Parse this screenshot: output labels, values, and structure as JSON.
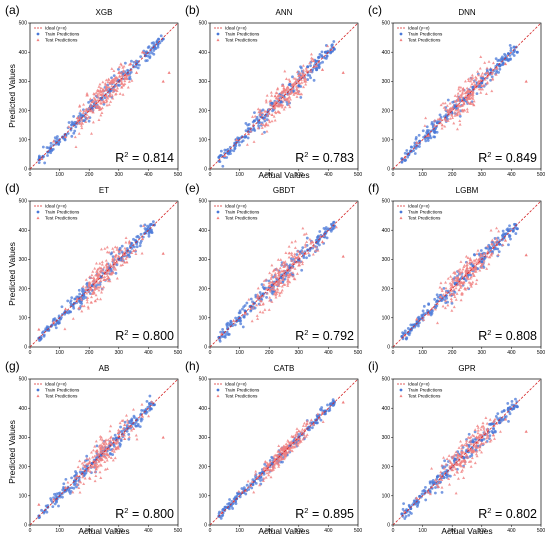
{
  "chart_data": [
    {
      "type": "scatter",
      "letter": "(a)",
      "title": "XGB",
      "r2": "0.814",
      "xlabel": "",
      "ylabel": "Predicted Values",
      "xlim": [
        0,
        500
      ],
      "ylim": [
        0,
        500
      ],
      "xticks": [
        0,
        100,
        200,
        300,
        400,
        500
      ],
      "yticks": [
        0,
        100,
        200,
        300,
        400,
        500
      ],
      "legend": [
        "Ideal (y=x)",
        "Train Predictions",
        "Test Predictions"
      ],
      "series": [
        {
          "name": "Ideal (y=x)",
          "x": [
            0,
            500
          ],
          "y": [
            0,
            500
          ]
        },
        {
          "name": "Train Predictions",
          "x": [
            30,
            60,
            90,
            120,
            150,
            180,
            210,
            240,
            270,
            300,
            330,
            360,
            390,
            420,
            450
          ],
          "y": [
            32,
            58,
            92,
            118,
            152,
            182,
            208,
            242,
            268,
            302,
            328,
            362,
            388,
            418,
            445
          ]
        },
        {
          "name": "Test Predictions",
          "x": [
            40,
            80,
            120,
            160,
            190,
            210,
            225,
            240,
            250,
            260,
            270,
            280,
            290,
            300,
            310,
            320,
            340,
            360,
            380,
            450,
            470
          ],
          "y": [
            35,
            95,
            110,
            175,
            200,
            230,
            210,
            265,
            230,
            280,
            250,
            300,
            270,
            330,
            280,
            310,
            360,
            330,
            400,
            300,
            330
          ]
        }
      ]
    },
    {
      "type": "scatter",
      "letter": "(b)",
      "title": "ANN",
      "r2": "0.783",
      "xlabel": "Actual Values",
      "ylabel": "",
      "xlim": [
        0,
        500
      ],
      "ylim": [
        0,
        500
      ],
      "xticks": [
        0,
        100,
        200,
        300,
        400,
        500
      ],
      "yticks": [
        0,
        100,
        200,
        300,
        400,
        500
      ],
      "legend": [
        "Ideal (y=x)",
        "Train Predictions",
        "Test Predictions"
      ],
      "series": [
        {
          "name": "Ideal (y=x)",
          "x": [
            0,
            500
          ],
          "y": [
            0,
            500
          ]
        },
        {
          "name": "Train Predictions",
          "x": [
            30,
            60,
            90,
            120,
            150,
            180,
            210,
            240,
            270,
            300,
            330,
            360,
            390,
            420
          ],
          "y": [
            40,
            55,
            100,
            110,
            165,
            175,
            225,
            230,
            290,
            285,
            350,
            340,
            400,
            410
          ]
        },
        {
          "name": "Test Predictions",
          "x": [
            50,
            90,
            130,
            170,
            200,
            220,
            240,
            250,
            260,
            270,
            290,
            300,
            320,
            350,
            380,
            450
          ],
          "y": [
            45,
            100,
            120,
            185,
            190,
            250,
            220,
            270,
            240,
            300,
            260,
            320,
            300,
            370,
            340,
            330
          ]
        }
      ]
    },
    {
      "type": "scatter",
      "letter": "(c)",
      "title": "DNN",
      "r2": "0.849",
      "xlabel": "",
      "ylabel": "",
      "xlim": [
        0,
        500
      ],
      "ylim": [
        0,
        500
      ],
      "xticks": [
        0,
        100,
        200,
        300,
        400,
        500
      ],
      "yticks": [
        0,
        100,
        200,
        300,
        400,
        500
      ],
      "legend": [
        "Ideal (y=x)",
        "Train Predictions",
        "Test Predictions"
      ],
      "series": [
        {
          "name": "Ideal (y=x)",
          "x": [
            0,
            500
          ],
          "y": [
            0,
            500
          ]
        },
        {
          "name": "Train Predictions",
          "x": [
            30,
            60,
            90,
            120,
            150,
            180,
            210,
            240,
            270,
            300,
            330,
            360,
            390,
            420
          ],
          "y": [
            35,
            62,
            95,
            118,
            158,
            178,
            215,
            238,
            280,
            295,
            340,
            355,
            395,
            400
          ]
        },
        {
          "name": "Test Predictions",
          "x": [
            40,
            80,
            120,
            160,
            200,
            220,
            240,
            250,
            270,
            290,
            300,
            320,
            350,
            380,
            450
          ],
          "y": [
            40,
            90,
            115,
            170,
            210,
            235,
            225,
            265,
            255,
            300,
            285,
            330,
            345,
            360,
            300
          ]
        }
      ]
    },
    {
      "type": "scatter",
      "letter": "(d)",
      "title": "ET",
      "r2": "0.800",
      "xlabel": "",
      "ylabel": "Predicted Values",
      "xlim": [
        0,
        500
      ],
      "ylim": [
        0,
        500
      ],
      "xticks": [
        0,
        100,
        200,
        300,
        400,
        500
      ],
      "yticks": [
        0,
        100,
        200,
        300,
        400,
        500
      ],
      "legend": [
        "Ideal (y=x)",
        "Train Predictions",
        "Test Predictions"
      ],
      "series": [
        {
          "name": "Ideal (y=x)",
          "x": [
            0,
            500
          ],
          "y": [
            0,
            500
          ]
        },
        {
          "name": "Train Predictions",
          "x": [
            30,
            60,
            90,
            120,
            150,
            180,
            210,
            240,
            270,
            300,
            330,
            360,
            390,
            420
          ],
          "y": [
            30,
            60,
            90,
            120,
            150,
            180,
            210,
            240,
            270,
            300,
            330,
            360,
            390,
            418
          ]
        },
        {
          "name": "Test Predictions",
          "x": [
            30,
            80,
            120,
            160,
            200,
            220,
            240,
            250,
            260,
            280,
            300,
            320,
            350,
            380,
            450
          ],
          "y": [
            60,
            85,
            130,
            165,
            215,
            200,
            270,
            230,
            285,
            255,
            310,
            290,
            330,
            370,
            320
          ]
        }
      ]
    },
    {
      "type": "scatter",
      "letter": "(e)",
      "title": "GBDT",
      "r2": "0.792",
      "xlabel": "",
      "ylabel": "",
      "xlim": [
        0,
        500
      ],
      "ylim": [
        0,
        500
      ],
      "xticks": [
        0,
        100,
        200,
        300,
        400,
        500
      ],
      "yticks": [
        0,
        100,
        200,
        300,
        400,
        500
      ],
      "legend": [
        "Ideal (y=x)",
        "Train Predictions",
        "Test Predictions"
      ],
      "series": [
        {
          "name": "Ideal (y=x)",
          "x": [
            0,
            500
          ],
          "y": [
            0,
            500
          ]
        },
        {
          "name": "Train Predictions",
          "x": [
            30,
            60,
            90,
            120,
            150,
            180,
            210,
            240,
            270,
            300,
            330,
            360,
            390,
            420
          ],
          "y": [
            33,
            62,
            88,
            122,
            150,
            182,
            212,
            238,
            272,
            298,
            332,
            358,
            392,
            415
          ]
        },
        {
          "name": "Test Predictions",
          "x": [
            40,
            80,
            120,
            160,
            200,
            220,
            240,
            250,
            270,
            290,
            300,
            320,
            350,
            380,
            450
          ],
          "y": [
            45,
            90,
            115,
            170,
            210,
            240,
            220,
            275,
            250,
            305,
            280,
            320,
            345,
            360,
            310
          ]
        }
      ]
    },
    {
      "type": "scatter",
      "letter": "(f)",
      "title": "LGBM",
      "r2": "0.808",
      "xlabel": "",
      "ylabel": "",
      "xlim": [
        0,
        500
      ],
      "ylim": [
        0,
        500
      ],
      "xticks": [
        0,
        100,
        200,
        300,
        400,
        500
      ],
      "yticks": [
        0,
        100,
        200,
        300,
        400,
        500
      ],
      "legend": [
        "Ideal (y=x)",
        "Train Predictions",
        "Test Predictions"
      ],
      "series": [
        {
          "name": "Ideal (y=x)",
          "x": [
            0,
            500
          ],
          "y": [
            0,
            500
          ]
        },
        {
          "name": "Train Predictions",
          "x": [
            30,
            60,
            90,
            120,
            150,
            180,
            210,
            240,
            270,
            300,
            330,
            360,
            390,
            420
          ],
          "y": [
            36,
            58,
            95,
            115,
            158,
            176,
            216,
            234,
            278,
            292,
            338,
            352,
            398,
            405
          ]
        },
        {
          "name": "Test Predictions",
          "x": [
            40,
            80,
            120,
            160,
            200,
            220,
            240,
            250,
            270,
            290,
            300,
            320,
            350,
            380,
            450
          ],
          "y": [
            40,
            95,
            112,
            172,
            205,
            238,
            222,
            270,
            252,
            300,
            282,
            325,
            350,
            365,
            315
          ]
        }
      ]
    },
    {
      "type": "scatter",
      "letter": "(g)",
      "title": "AB",
      "r2": "0.800",
      "xlabel": "Actual Values",
      "ylabel": "Predicted Values",
      "xlim": [
        0,
        500
      ],
      "ylim": [
        0,
        500
      ],
      "xticks": [
        0,
        100,
        200,
        300,
        400,
        500
      ],
      "yticks": [
        0,
        100,
        200,
        300,
        400,
        500
      ],
      "legend": [
        "Ideal (y=x)",
        "Train Predictions",
        "Test Predictions"
      ],
      "series": [
        {
          "name": "Ideal (y=x)",
          "x": [
            0,
            500
          ],
          "y": [
            0,
            500
          ]
        },
        {
          "name": "Train Predictions",
          "x": [
            30,
            60,
            90,
            120,
            150,
            180,
            210,
            240,
            270,
            300,
            330,
            360,
            390,
            420
          ],
          "y": [
            31,
            61,
            89,
            121,
            151,
            179,
            211,
            239,
            271,
            299,
            331,
            359,
            391,
            412
          ]
        },
        {
          "name": "Test Predictions",
          "x": [
            30,
            80,
            120,
            160,
            200,
            220,
            240,
            250,
            270,
            290,
            300,
            320,
            350,
            380,
            450
          ],
          "y": [
            70,
            88,
            128,
            168,
            212,
            205,
            265,
            235,
            280,
            260,
            305,
            295,
            330,
            372,
            300
          ]
        }
      ]
    },
    {
      "type": "scatter",
      "letter": "(h)",
      "title": "CATB",
      "r2": "0.895",
      "xlabel": "Actual Values",
      "ylabel": "",
      "xlim": [
        0,
        500
      ],
      "ylim": [
        0,
        500
      ],
      "xticks": [
        0,
        100,
        200,
        300,
        400,
        500
      ],
      "yticks": [
        0,
        100,
        200,
        300,
        400,
        500
      ],
      "legend": [
        "Ideal (y=x)",
        "Train Predictions",
        "Test Predictions"
      ],
      "series": [
        {
          "name": "Ideal (y=x)",
          "x": [
            0,
            500
          ],
          "y": [
            0,
            500
          ]
        },
        {
          "name": "Train Predictions",
          "x": [
            30,
            60,
            90,
            120,
            150,
            180,
            210,
            240,
            270,
            300,
            330,
            360,
            390,
            420
          ],
          "y": [
            30,
            60,
            90,
            120,
            150,
            180,
            210,
            240,
            270,
            300,
            330,
            360,
            390,
            420
          ]
        },
        {
          "name": "Test Predictions",
          "x": [
            40,
            80,
            120,
            160,
            200,
            220,
            240,
            250,
            270,
            290,
            300,
            320,
            350,
            380,
            450
          ],
          "y": [
            42,
            82,
            118,
            162,
            205,
            225,
            235,
            255,
            265,
            295,
            295,
            325,
            345,
            385,
            420
          ]
        }
      ]
    },
    {
      "type": "scatter",
      "letter": "(i)",
      "title": "GPR",
      "r2": "0.802",
      "xlabel": "Actual Values",
      "ylabel": "",
      "xlim": [
        0,
        500
      ],
      "ylim": [
        0,
        500
      ],
      "xticks": [
        0,
        100,
        200,
        300,
        400,
        500
      ],
      "yticks": [
        0,
        100,
        200,
        300,
        400,
        500
      ],
      "legend": [
        "Ideal (y=x)",
        "Train Predictions",
        "Test Predictions"
      ],
      "series": [
        {
          "name": "Ideal (y=x)",
          "x": [
            0,
            500
          ],
          "y": [
            0,
            500
          ]
        },
        {
          "name": "Train Predictions",
          "x": [
            30,
            60,
            90,
            120,
            150,
            180,
            210,
            240,
            270,
            300,
            330,
            360,
            390,
            420
          ],
          "y": [
            38,
            56,
            98,
            112,
            165,
            172,
            225,
            230,
            285,
            290,
            345,
            350,
            400,
            405
          ]
        },
        {
          "name": "Test Predictions",
          "x": [
            40,
            80,
            120,
            160,
            200,
            220,
            240,
            250,
            270,
            290,
            300,
            320,
            350,
            380,
            450
          ],
          "y": [
            45,
            92,
            112,
            170,
            208,
            240,
            218,
            272,
            250,
            302,
            280,
            325,
            348,
            362,
            320
          ]
        }
      ]
    }
  ],
  "colors": {
    "ideal": "#d62728",
    "train": "#4a78d8",
    "test": "#f08080",
    "axis": "#000000"
  }
}
